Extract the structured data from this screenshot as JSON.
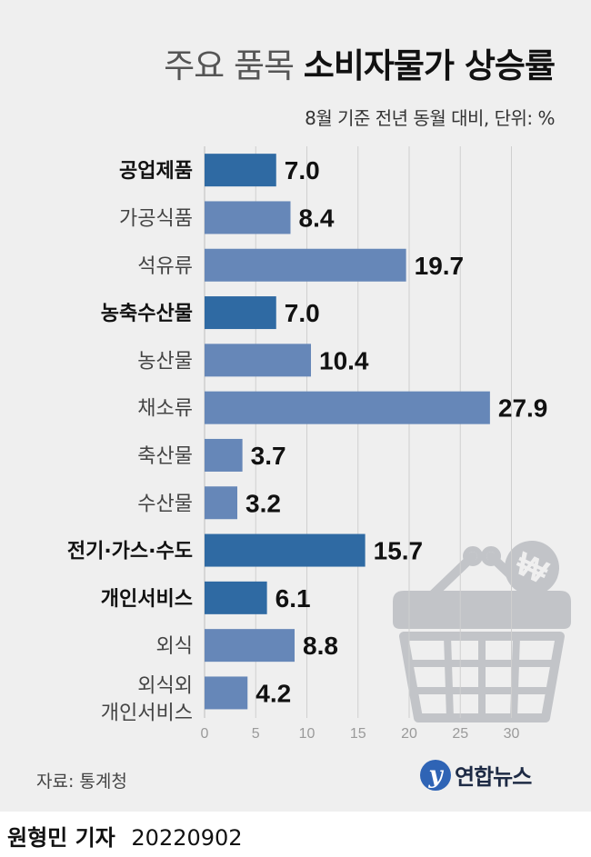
{
  "header": {
    "title_light": "주요 품목",
    "title_bold": "소비자물가 상승률",
    "subtitle": "8월 기준 전년 동월 대비, 단위: %"
  },
  "chart_data": {
    "type": "bar",
    "orientation": "horizontal",
    "categories": [
      [
        "공업제품"
      ],
      [
        "가공식품"
      ],
      [
        "석유류"
      ],
      [
        "농축수산물"
      ],
      [
        "농산물"
      ],
      [
        "채소류"
      ],
      [
        "축산물"
      ],
      [
        "수산물"
      ],
      [
        "전기·가스·수도"
      ],
      [
        "개인서비스"
      ],
      [
        "외식"
      ],
      [
        "외식외",
        "개인서비스"
      ]
    ],
    "values": [
      7.0,
      8.4,
      19.7,
      7.0,
      10.4,
      27.9,
      3.7,
      3.2,
      15.7,
      6.1,
      8.8,
      4.2
    ],
    "value_labels": [
      "7.0",
      "8.4",
      "19.7",
      "7.0",
      "10.4",
      "27.9",
      "3.7",
      "3.2",
      "15.7",
      "6.1",
      "8.8",
      "4.2"
    ],
    "group_header": [
      true,
      false,
      false,
      true,
      false,
      false,
      false,
      false,
      true,
      true,
      false,
      false
    ],
    "xlim": [
      0,
      35
    ],
    "xticks": [
      0,
      5,
      10,
      15,
      20,
      25,
      30
    ],
    "tick_labels": [
      "0",
      "5",
      "10",
      "15",
      "20",
      "25",
      "30"
    ],
    "grid": true,
    "colors": {
      "header_bar": "#2f6aa3",
      "sub_bar": "#6687b8",
      "grid": "#cfcfcf",
      "illustration": "#c2c4c8"
    }
  },
  "footer": {
    "source": "자료: 통계청",
    "logo_mark": "y",
    "logo_text": "연합뉴스",
    "author": "원형민 기자",
    "date": "20220902"
  }
}
